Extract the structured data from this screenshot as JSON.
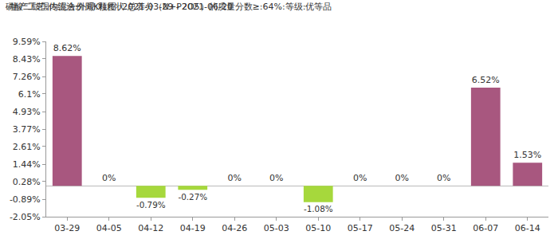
{
  "chart_data": {
    "type": "bar",
    "title": "磷酸二铵国内混合价周K柱图  2021-03-29 - 2021-06-20",
    "subtitle": "生产工艺:传统法:外观:颗粒状:总养分（N+P2O5）的质量分数≥:64%:等级:优等品",
    "categories": [
      "03-29",
      "04-05",
      "04-12",
      "04-19",
      "04-26",
      "05-03",
      "05-10",
      "05-17",
      "05-24",
      "05-31",
      "06-07",
      "06-14"
    ],
    "values": [
      8.62,
      0,
      -0.79,
      -0.27,
      0,
      0,
      -1.08,
      0,
      0,
      0,
      6.52,
      1.53
    ],
    "value_labels": [
      "8.62%",
      "0%",
      "-0.79%",
      "-0.27%",
      "0%",
      "0%",
      "-1.08%",
      "0%",
      "0%",
      "0%",
      "6.52%",
      "1.53%"
    ],
    "colors": [
      "#a8577f",
      "#a8577f",
      "#a6d83c",
      "#a6d83c",
      "#a8577f",
      "#a8577f",
      "#a6d83c",
      "#a8577f",
      "#a8577f",
      "#a8577f",
      "#a8577f",
      "#a8577f"
    ],
    "ylim": [
      -2.05,
      9.59
    ],
    "yticks": [
      {
        "value": -2.05,
        "label": "-2.05%"
      },
      {
        "value": -0.89,
        "label": "-0.89%"
      },
      {
        "value": 0.28,
        "label": "0.28%"
      },
      {
        "value": 1.44,
        "label": "1.44%"
      },
      {
        "value": 2.61,
        "label": "2.61%"
      },
      {
        "value": 3.77,
        "label": "3.77%"
      },
      {
        "value": 4.93,
        "label": "4.93%"
      },
      {
        "value": 6.1,
        "label": "6.1%"
      },
      {
        "value": 7.26,
        "label": "7.26%"
      },
      {
        "value": 8.43,
        "label": "8.43%"
      },
      {
        "value": 9.59,
        "label": "9.59%"
      }
    ],
    "grid": false,
    "data_labels": true
  }
}
